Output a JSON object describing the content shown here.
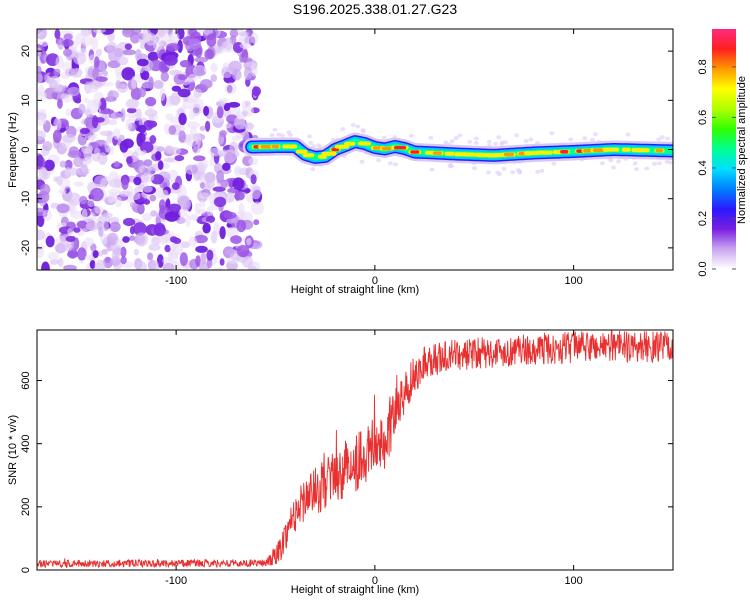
{
  "title": "S196.2025.338.01.27.G23",
  "chart_data": [
    {
      "type": "heatmap",
      "xlabel": "Height of straight line (km)",
      "ylabel": "Frequency (Hz)",
      "xlim": [
        -170,
        150
      ],
      "ylim": [
        -24.5,
        24.5
      ],
      "xticks": [
        -100,
        0,
        100
      ],
      "yticks": [
        -20,
        -10,
        0,
        10,
        20
      ],
      "colorbar": {
        "label": "Normalized spectral amplitude",
        "range": [
          0,
          0.95
        ],
        "ticks": [
          0.0,
          0.2,
          0.4,
          0.6,
          0.8
        ],
        "colors": [
          "#ffffff",
          "#c9a6f0",
          "#7a1ee0",
          "#2a1aff",
          "#0080ff",
          "#00e0ff",
          "#00ff90",
          "#30ff00",
          "#b0ff00",
          "#ffff00",
          "#ff9900",
          "#ff2020",
          "#ff2a80"
        ]
      },
      "noise_region_x": [
        -170,
        -59
      ],
      "signal_start_x": -62,
      "signal_path": [
        [
          -62,
          0.5
        ],
        [
          -50,
          0.6
        ],
        [
          -40,
          0.6
        ],
        [
          -35,
          -1.0
        ],
        [
          -30,
          -1.6
        ],
        [
          -25,
          -1.4
        ],
        [
          -20,
          0.0
        ],
        [
          -15,
          0.8
        ],
        [
          -10,
          1.6
        ],
        [
          -5,
          1.2
        ],
        [
          0,
          0.4
        ],
        [
          5,
          0.1
        ],
        [
          10,
          0.6
        ],
        [
          15,
          0.2
        ],
        [
          20,
          -0.5
        ],
        [
          40,
          -0.9
        ],
        [
          60,
          -1.2
        ],
        [
          80,
          -0.7
        ],
        [
          100,
          -0.4
        ],
        [
          120,
          0.0
        ],
        [
          150,
          -0.3
        ]
      ]
    },
    {
      "type": "line",
      "xlabel": "Height of straight line (km)",
      "ylabel": "SNR (10 * v/v)",
      "xlim": [
        -170,
        150
      ],
      "ylim": [
        0,
        760
      ],
      "xticks": [
        -100,
        0,
        100
      ],
      "yticks": [
        0,
        200,
        400,
        600
      ],
      "color": "#e83030",
      "trend": [
        [
          -170,
          20
        ],
        [
          -55,
          22
        ],
        [
          -48,
          60
        ],
        [
          -42,
          160
        ],
        [
          -35,
          230
        ],
        [
          -25,
          270
        ],
        [
          -15,
          320
        ],
        [
          -5,
          360
        ],
        [
          5,
          420
        ],
        [
          12,
          520
        ],
        [
          18,
          600
        ],
        [
          25,
          660
        ],
        [
          40,
          680
        ],
        [
          60,
          690
        ],
        [
          80,
          700
        ],
        [
          100,
          705
        ],
        [
          120,
          710
        ],
        [
          150,
          705
        ]
      ],
      "noise_amplitude": [
        [
          -170,
          12
        ],
        [
          -55,
          12
        ],
        [
          -48,
          40
        ],
        [
          -35,
          70
        ],
        [
          -15,
          90
        ],
        [
          5,
          100
        ],
        [
          20,
          60
        ],
        [
          40,
          50
        ],
        [
          150,
          50
        ]
      ]
    }
  ]
}
